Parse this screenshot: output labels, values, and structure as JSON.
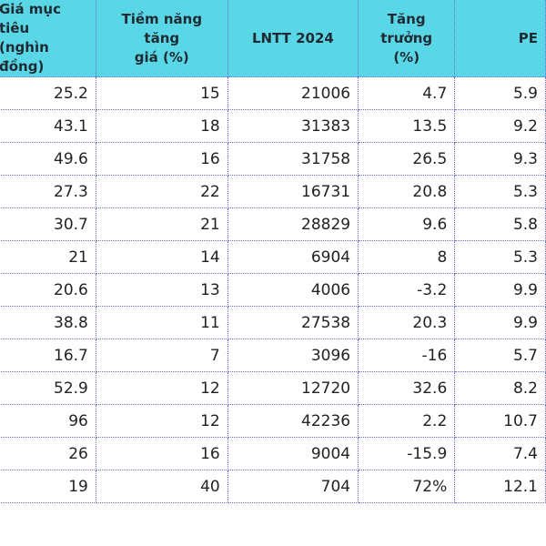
{
  "table": {
    "headers": [
      "Giá mục tiêu\n(nghìn đồng)",
      "Tiềm năng tăng\ngiá (%)",
      "LNTT 2024",
      "Tăng\ntrưởng (%)",
      "PE"
    ],
    "rows": [
      [
        "25.2",
        "15",
        "21006",
        "4.7",
        "5.9"
      ],
      [
        "43.1",
        "18",
        "31383",
        "13.5",
        "9.2"
      ],
      [
        "49.6",
        "16",
        "31758",
        "26.5",
        "9.3"
      ],
      [
        "27.3",
        "22",
        "16731",
        "20.8",
        "5.3"
      ],
      [
        "30.7",
        "21",
        "28829",
        "9.6",
        "5.8"
      ],
      [
        "21",
        "14",
        "6904",
        "8",
        "5.3"
      ],
      [
        "20.6",
        "13",
        "4006",
        "-3.2",
        "9.9"
      ],
      [
        "38.8",
        "11",
        "27538",
        "20.3",
        "9.9"
      ],
      [
        "16.7",
        "7",
        "3096",
        "-16",
        "5.7"
      ],
      [
        "52.9",
        "12",
        "12720",
        "32.6",
        "8.2"
      ],
      [
        "96",
        "12",
        "42236",
        "2.2",
        "10.7"
      ],
      [
        "26",
        "16",
        "9004",
        "-15.9",
        "7.4"
      ],
      [
        "19",
        "40",
        "704",
        "72%",
        "12.1"
      ]
    ]
  },
  "colors": {
    "header_bg": "#5ad7e6",
    "grid": "#6a72d8"
  }
}
